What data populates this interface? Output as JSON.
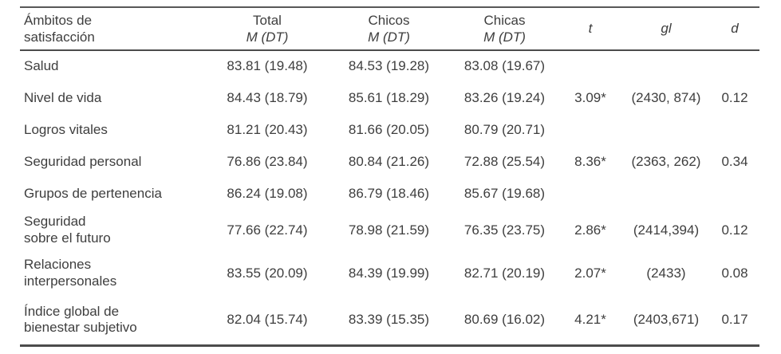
{
  "table": {
    "header": {
      "col0": [
        "Ámbitos de",
        "satisfacción"
      ],
      "total": "Total",
      "chicos": "Chicos",
      "chicas": "Chicas",
      "m_dt": "M (DT)",
      "t": "t",
      "gl": "gl",
      "d": "d"
    },
    "rows": [
      {
        "label1": "Salud",
        "label2": "",
        "total": "83.81 (19.48)",
        "chicos": "84.53 (19.28)",
        "chicas": "83.08 (19.67)",
        "t": "",
        "gl": "",
        "d": ""
      },
      {
        "label1": "Nivel de vida",
        "label2": "",
        "total": "84.43 (18.79)",
        "chicos": "85.61 (18.29)",
        "chicas": "83.26 (19.24)",
        "t": "3.09*",
        "gl": "(2430, 874)",
        "d": "0.12"
      },
      {
        "label1": "Logros vitales",
        "label2": "",
        "total": "81.21 (20.43)",
        "chicos": "81.66 (20.05)",
        "chicas": "80.79 (20.71)",
        "t": "",
        "gl": "",
        "d": ""
      },
      {
        "label1": "Seguridad personal",
        "label2": "",
        "total": "76.86 (23.84)",
        "chicos": "80.84 (21.26)",
        "chicas": "72.88 (25.54)",
        "t": "8.36*",
        "gl": "(2363, 262)",
        "d": "0.34"
      },
      {
        "label1": "Grupos de pertenencia",
        "label2": "",
        "total": "86.24 (19.08)",
        "chicos": "86.79 (18.46)",
        "chicas": "85.67 (19.68)",
        "t": "",
        "gl": "",
        "d": ""
      },
      {
        "label1": "Seguridad",
        "label2": "sobre el futuro",
        "total": "77.66 (22.74)",
        "chicos": "78.98 (21.59)",
        "chicas": "76.35 (23.75)",
        "t": "2.86*",
        "gl": "(2414,394)",
        "d": "0.12"
      },
      {
        "label1": "Relaciones",
        "label2": "interpersonales",
        "total": "83.55 (20.09)",
        "chicos": "84.39 (19.99)",
        "chicas": "82.71 (20.19)",
        "t": "2.07*",
        "gl": "(2433)",
        "d": "0.08"
      },
      {
        "label1": "Índice global de",
        "label2": "bienestar subjetivo",
        "total": "82.04 (15.74)",
        "chicos": "83.39 (15.35)",
        "chicas": "80.69 (16.02)",
        "t": "4.21*",
        "gl": "(2403,671)",
        "d": "0.17"
      }
    ]
  }
}
